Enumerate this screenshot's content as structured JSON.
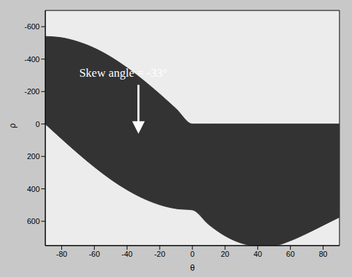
{
  "chart_data": {
    "type": "area",
    "x_label": "θ",
    "y_label": "ρ",
    "x": [
      -90,
      -80,
      -70,
      -60,
      -50,
      -40,
      -30,
      -20,
      -10,
      0,
      10,
      20,
      30,
      40,
      50,
      60,
      70,
      80,
      90
    ],
    "series": [
      {
        "color": "#333333",
        "values": [
          [
            -540,
            0
          ],
          [
            -532,
            92
          ],
          [
            -507,
            181
          ],
          [
            -468,
            265
          ],
          [
            -414,
            341
          ],
          [
            -347,
            406
          ],
          [
            -270,
            459
          ],
          [
            -185,
            498
          ],
          [
            -94,
            522
          ],
          [
            0,
            530
          ],
          [
            0,
            620
          ],
          [
            0,
            690
          ],
          [
            0,
            735
          ],
          [
            0,
            753
          ],
          [
            0,
            750
          ],
          [
            0,
            720
          ],
          [
            0,
            675
          ],
          [
            0,
            625
          ],
          [
            0,
            575
          ]
        ]
      }
    ],
    "xlim": [
      -90,
      90
    ],
    "xticks": [
      -80,
      -60,
      -40,
      -20,
      0,
      20,
      40,
      60,
      80
    ],
    "ylim": [
      -700,
      750
    ],
    "yticks": [
      -600,
      -400,
      -200,
      0,
      200,
      400,
      600
    ],
    "annotations": [
      {
        "text": "Skew angle = -33°",
        "x": -33,
        "y": 60
      }
    ]
  }
}
